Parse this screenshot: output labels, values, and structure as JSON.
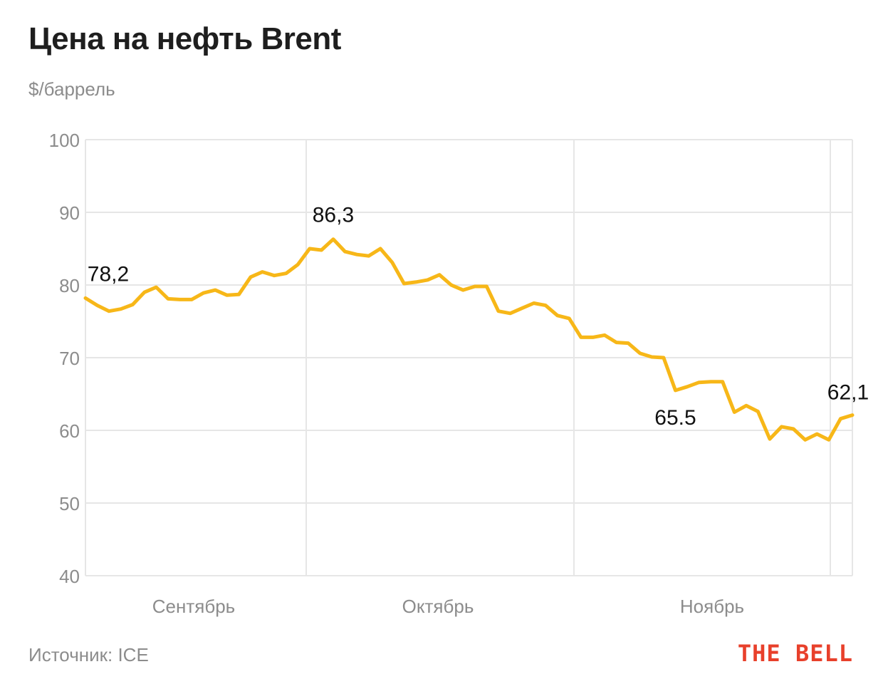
{
  "colors": {
    "line": "#F7B718",
    "grid": "#e6e6e6",
    "axis_text": "#8c8c8c",
    "label_text": "#111111",
    "brand": "#e8402b"
  },
  "header": {
    "title": "Цена на нефть Brent",
    "subtitle": "$/баррель"
  },
  "footer": {
    "source": "Источник: ICE",
    "brand": "THE BELL"
  },
  "chart_data": {
    "type": "line",
    "title": "Цена на нефть Brent",
    "ylabel": "$/баррель",
    "ylim": [
      40,
      100
    ],
    "yticks": [
      100,
      90,
      80,
      70,
      60,
      50,
      40
    ],
    "grid": true,
    "x_month_labels": [
      "Сентябрь",
      "Октябрь",
      "Ноябрь"
    ],
    "series": [
      {
        "values": [
          78.2,
          77.2,
          76.4,
          76.7,
          77.3,
          79.0,
          79.7,
          78.1,
          78.0,
          78.0,
          78.9,
          79.3,
          78.6,
          78.7,
          81.1,
          81.8,
          81.3,
          81.6,
          82.8,
          85.0,
          84.8,
          86.3,
          84.6,
          84.2,
          84.0,
          85.0,
          83.1,
          80.2,
          80.4,
          80.7,
          81.4,
          80.0,
          79.3,
          79.8,
          79.8,
          76.4,
          76.1,
          76.8,
          77.5,
          77.2,
          75.8,
          75.4,
          72.8,
          72.8,
          73.1,
          72.1,
          72.0,
          70.6,
          70.1,
          70.0,
          65.5,
          66.0,
          66.6,
          66.7,
          66.7,
          62.5,
          63.4,
          62.6,
          58.8,
          60.5,
          60.2,
          58.7,
          59.5,
          58.7,
          61.6,
          62.1
        ]
      }
    ],
    "annotations": [
      {
        "index": 0,
        "text": "78,2"
      },
      {
        "index": 21,
        "text": "86,3"
      },
      {
        "index": 50,
        "text": "65.5"
      },
      {
        "index": 65,
        "text": "62,1"
      }
    ]
  }
}
